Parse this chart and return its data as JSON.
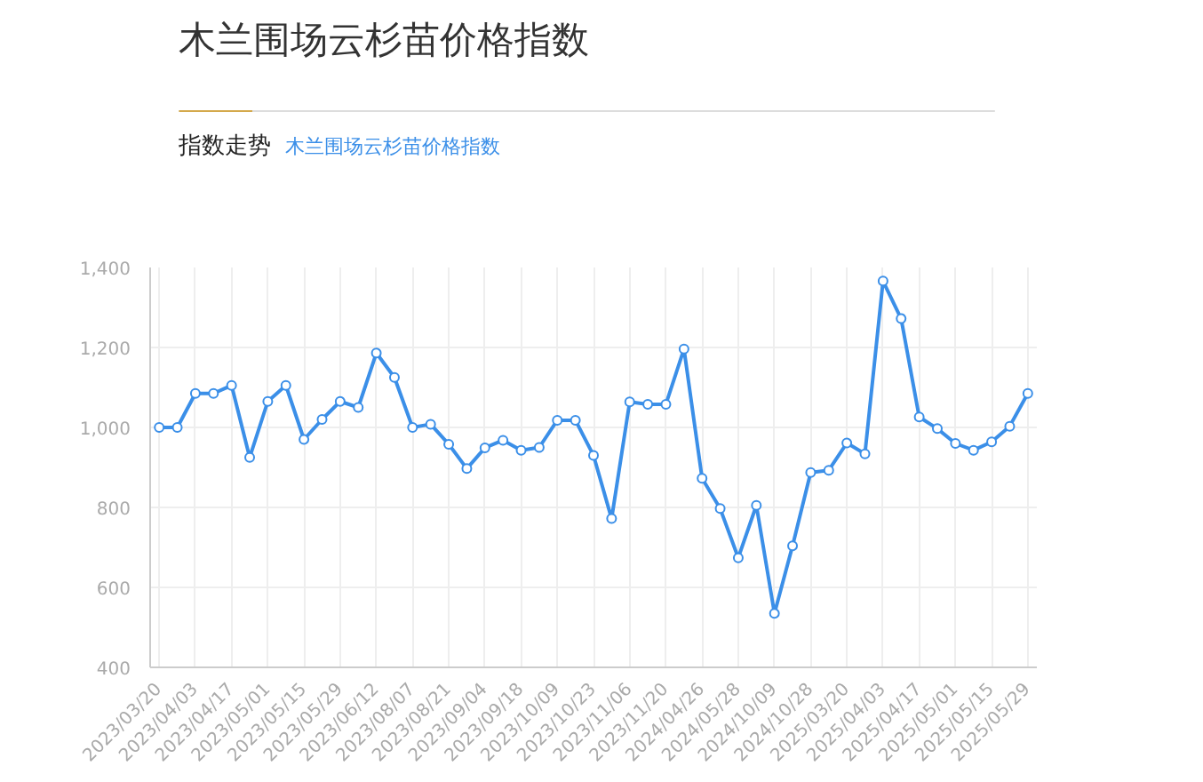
{
  "chart_data": {
    "type": "line",
    "title": "木兰围场云杉苗价格指数",
    "subtitle": "指数走势",
    "categories": [
      "2023/03/20",
      null,
      "2023/04/03",
      null,
      "2023/04/17",
      null,
      "2023/05/01",
      null,
      "2023/05/15",
      null,
      "2023/05/29",
      null,
      "2023/06/12",
      null,
      "2023/08/07",
      null,
      "2023/08/21",
      null,
      "2023/09/04",
      null,
      "2023/09/18",
      null,
      "2023/10/09",
      null,
      "2023/10/23",
      null,
      "2023/11/06",
      null,
      "2023/11/20",
      null,
      "2024/04/26",
      null,
      "2024/05/28",
      null,
      "2024/10/09",
      null,
      "2024/10/28",
      null,
      "2025/03/20",
      null,
      "2025/04/03",
      null,
      "2025/04/17",
      null,
      "2025/05/01",
      null,
      "2025/05/15",
      null,
      "2025/05/29"
    ],
    "series": [
      {
        "name": "木兰围场云杉苗价格指数",
        "color": "#3b8fe8",
        "values": [
          1000,
          1000,
          1085,
          1085,
          1105,
          925,
          1065,
          1105,
          970,
          1020,
          1065,
          1050,
          1186,
          1125,
          1000,
          1008,
          958,
          897,
          949,
          968,
          943,
          950,
          1018,
          1018,
          930,
          772,
          1064,
          1058,
          1058,
          1196,
          873,
          797,
          674,
          805,
          535,
          704,
          887,
          893,
          961,
          934,
          1366,
          1272,
          1026,
          997,
          960,
          943,
          964,
          1003,
          1085
        ]
      }
    ],
    "ylim": [
      400,
      1400
    ],
    "yticks": [
      {
        "value": 400,
        "label": "400"
      },
      {
        "value": 600,
        "label": "600"
      },
      {
        "value": 800,
        "label": "800"
      },
      {
        "value": 1000,
        "label": "1,000"
      },
      {
        "value": 1200,
        "label": "1,200"
      },
      {
        "value": 1400,
        "label": "1,400"
      }
    ],
    "grid": true,
    "marker": "circle",
    "line_style": "solid"
  }
}
